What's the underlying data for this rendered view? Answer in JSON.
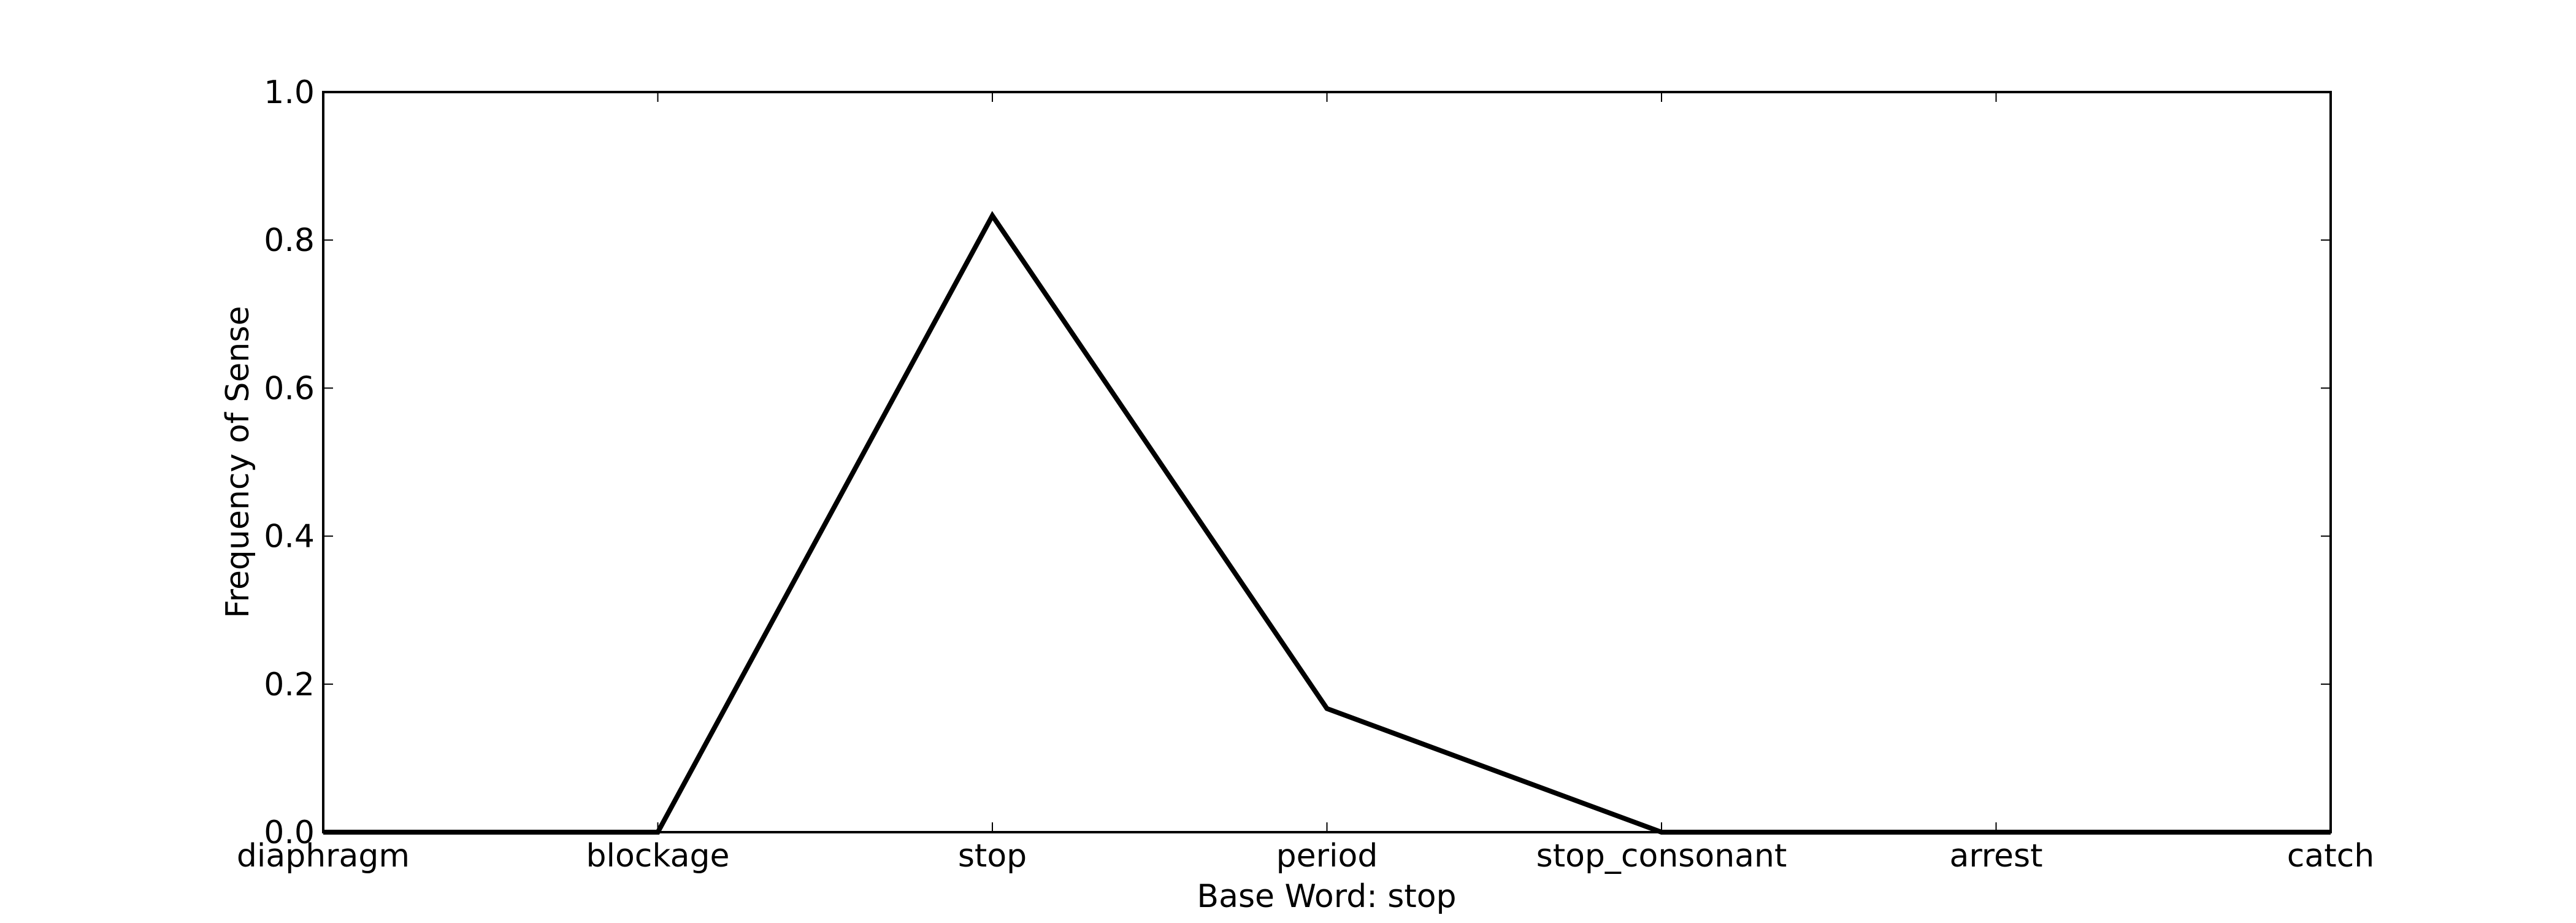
{
  "chart_data": {
    "type": "line",
    "title": "",
    "xlabel": "Base Word: stop",
    "ylabel": "Frequency of Sense",
    "categories": [
      "diaphragm",
      "blockage",
      "stop",
      "period",
      "stop_consonant",
      "arrest",
      "catch"
    ],
    "series": [
      {
        "values": [
          0.0,
          0.0,
          0.833,
          0.167,
          0.0,
          0.0,
          0.0
        ],
        "color": "#000000"
      }
    ],
    "ylim": [
      0.0,
      1.0
    ],
    "yticks": [
      "0.0",
      "0.2",
      "0.4",
      "0.6",
      "0.8",
      "1.0"
    ],
    "grid": false,
    "legend": "none"
  }
}
